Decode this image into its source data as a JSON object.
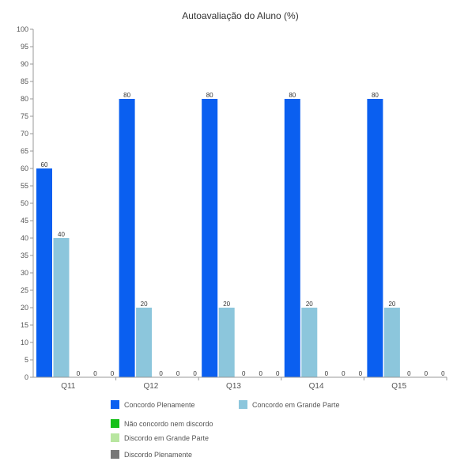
{
  "chart_data": {
    "type": "bar",
    "title": "Autoavaliação do Aluno (%)",
    "xlabel": "",
    "ylabel": "",
    "ylim": [
      0,
      100
    ],
    "y_ticks": [
      0,
      5,
      10,
      15,
      20,
      25,
      30,
      35,
      40,
      45,
      50,
      55,
      60,
      65,
      70,
      75,
      80,
      85,
      90,
      95,
      100
    ],
    "categories": [
      "Q11",
      "Q12",
      "Q13",
      "Q14",
      "Q15"
    ],
    "series": [
      {
        "name": "Concordo Plenamente",
        "color": "#0a5ff0",
        "values": [
          60,
          80,
          80,
          80,
          80
        ]
      },
      {
        "name": "Concordo em Grande Parte",
        "color": "#8cc6dc",
        "values": [
          40,
          20,
          20,
          20,
          20
        ]
      },
      {
        "name": "Não concordo nem discordo",
        "color": "#16c01a",
        "values": [
          0,
          0,
          0,
          0,
          0
        ]
      },
      {
        "name": "Discordo em Grande Parte",
        "color": "#b8e6a0",
        "values": [
          0,
          0,
          0,
          0,
          0
        ]
      },
      {
        "name": "Discordo Plenamente",
        "color": "#777777",
        "values": [
          0,
          0,
          0,
          0,
          0
        ]
      }
    ],
    "grid": false,
    "legend_position": "bottom"
  }
}
